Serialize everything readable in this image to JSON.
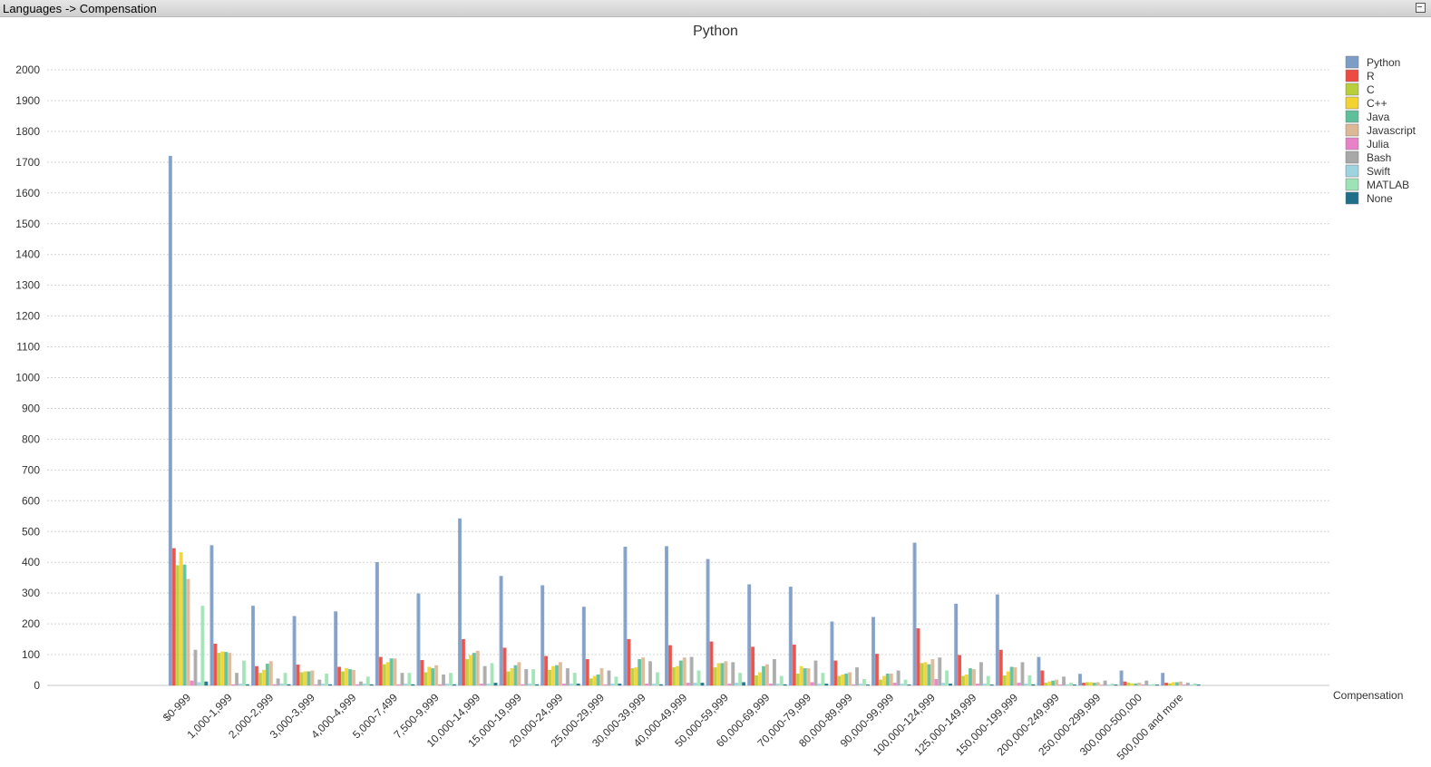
{
  "window": {
    "title": "Languages -> Compensation"
  },
  "chart_data": {
    "type": "bar",
    "title": "Python",
    "xlabel": "Compensation",
    "ylabel": "",
    "ylim": [
      0,
      2000
    ],
    "yticks": [
      0,
      100,
      200,
      300,
      400,
      500,
      600,
      700,
      800,
      900,
      1000,
      1100,
      1200,
      1300,
      1400,
      1500,
      1600,
      1700,
      1800,
      1900,
      2000
    ],
    "grid": true,
    "legend_position": "top-right",
    "categories": [
      "$0-999",
      "1,000-1,999",
      "2,000-2,999",
      "3,000-3,999",
      "4,000-4,999",
      "5,000-7,499",
      "7,500-9,999",
      "10,000-14,999",
      "15,000-19,999",
      "20,000-24,999",
      "25,000-29,999",
      "30,000-39,999",
      "40,000-49,999",
      "50,000-59,999",
      "60,000-69,999",
      "70,000-79,999",
      "80,000-89,999",
      "90,000-99,999",
      "100,000-124,999",
      "125,000-149,999",
      "150,000-199,999",
      "200,000-249,999",
      "250,000-299,999",
      "300,000-500,000",
      "500,000 and more"
    ],
    "series": [
      {
        "name": "Python",
        "color": "#7d9cc6",
        "values": [
          1720,
          455,
          258,
          225,
          240,
          400,
          298,
          542,
          355,
          325,
          255,
          450,
          452,
          410,
          328,
          320,
          207,
          222,
          463,
          265,
          295,
          92,
          37,
          48,
          40
        ]
      },
      {
        "name": "R",
        "color": "#ec4a42",
        "values": [
          445,
          135,
          62,
          67,
          60,
          92,
          82,
          150,
          122,
          95,
          85,
          150,
          130,
          142,
          125,
          132,
          80,
          102,
          185,
          98,
          115,
          48,
          8,
          12,
          8
        ]
      },
      {
        "name": "C",
        "color": "#b8ce3a",
        "values": [
          390,
          105,
          40,
          42,
          45,
          68,
          42,
          85,
          45,
          50,
          22,
          55,
          58,
          58,
          32,
          38,
          30,
          18,
          72,
          30,
          32,
          8,
          10,
          8,
          6
        ]
      },
      {
        "name": "C++",
        "color": "#f3d332",
        "values": [
          432,
          110,
          50,
          45,
          55,
          75,
          60,
          98,
          55,
          62,
          30,
          58,
          62,
          72,
          42,
          62,
          35,
          30,
          75,
          35,
          45,
          12,
          10,
          6,
          10
        ]
      },
      {
        "name": "Java",
        "color": "#5dc09b",
        "values": [
          392,
          108,
          70,
          45,
          52,
          87,
          55,
          105,
          65,
          65,
          35,
          85,
          80,
          72,
          62,
          55,
          38,
          38,
          68,
          55,
          60,
          15,
          8,
          6,
          10
        ]
      },
      {
        "name": "Javascript",
        "color": "#ddb896",
        "values": [
          345,
          105,
          78,
          48,
          50,
          87,
          65,
          112,
          75,
          75,
          55,
          90,
          90,
          78,
          68,
          55,
          42,
          38,
          85,
          52,
          58,
          18,
          10,
          8,
          12
        ]
      },
      {
        "name": "Julia",
        "color": "#e882c8",
        "values": [
          15,
          3,
          3,
          2,
          3,
          3,
          3,
          5,
          3,
          5,
          2,
          5,
          8,
          5,
          5,
          10,
          2,
          8,
          20,
          5,
          8,
          2,
          1,
          2,
          2
        ]
      },
      {
        "name": "Bash",
        "color": "#a8a8a8",
        "values": [
          115,
          40,
          22,
          18,
          12,
          40,
          35,
          62,
          52,
          55,
          48,
          78,
          92,
          75,
          85,
          80,
          58,
          48,
          90,
          75,
          75,
          28,
          15,
          15,
          8
        ]
      },
      {
        "name": "Swift",
        "color": "#9ed3e0",
        "values": [
          10,
          5,
          5,
          5,
          5,
          5,
          5,
          5,
          5,
          5,
          5,
          5,
          8,
          8,
          5,
          5,
          5,
          5,
          8,
          5,
          5,
          3,
          2,
          2,
          2
        ]
      },
      {
        "name": "MATLAB",
        "color": "#9ee3b5",
        "values": [
          258,
          80,
          40,
          38,
          28,
          40,
          40,
          72,
          52,
          40,
          28,
          42,
          48,
          40,
          30,
          40,
          20,
          18,
          48,
          30,
          32,
          8,
          5,
          4,
          6
        ]
      },
      {
        "name": "None",
        "color": "#1f6f8b",
        "values": [
          12,
          3,
          3,
          3,
          3,
          3,
          3,
          8,
          3,
          5,
          5,
          3,
          8,
          10,
          3,
          5,
          2,
          2,
          5,
          2,
          3,
          2,
          2,
          2,
          2
        ]
      }
    ]
  }
}
